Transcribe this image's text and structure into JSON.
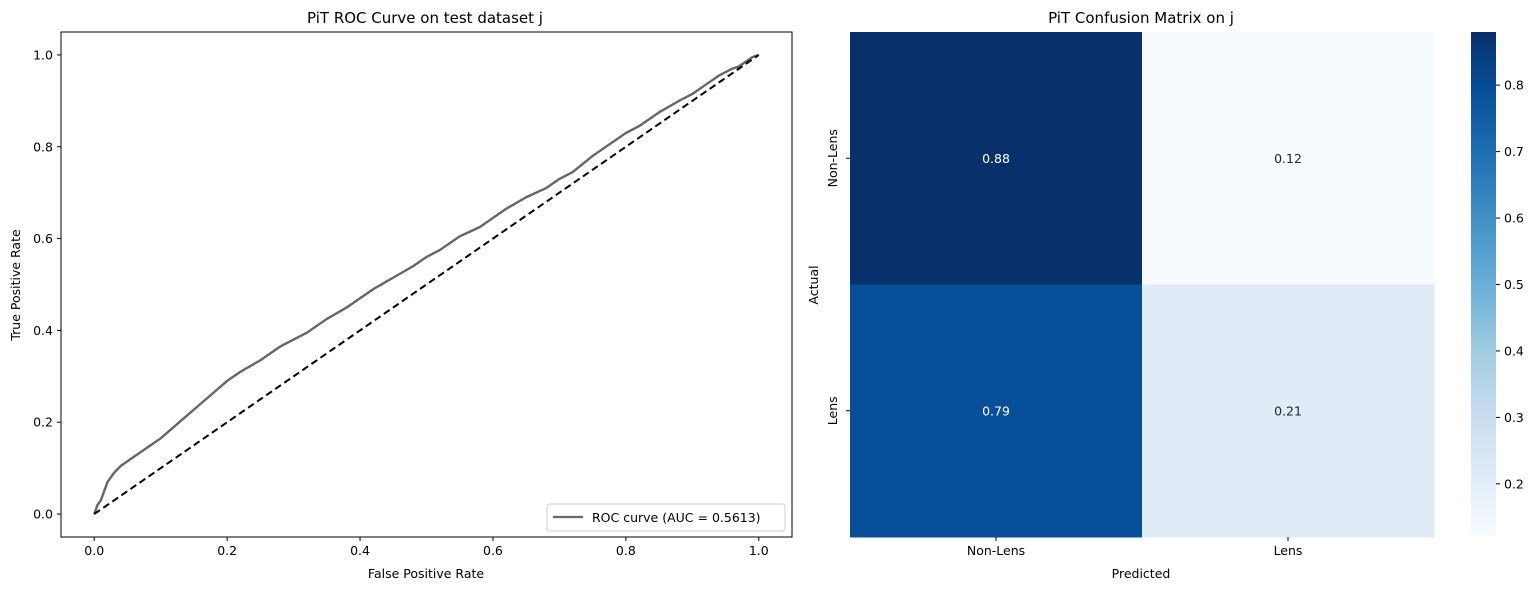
{
  "chart_data": [
    {
      "type": "line",
      "title": "PiT ROC Curve on test dataset j",
      "xlabel": "False Positive Rate",
      "ylabel": "True Positive Rate",
      "xlim": [
        -0.05,
        1.05
      ],
      "ylim": [
        -0.05,
        1.05
      ],
      "xticks": [
        0.0,
        0.2,
        0.4,
        0.6,
        0.8,
        1.0
      ],
      "yticks": [
        0.0,
        0.2,
        0.4,
        0.6,
        0.8,
        1.0
      ],
      "xtick_labels": [
        "0.0",
        "0.2",
        "0.4",
        "0.6",
        "0.8",
        "1.0"
      ],
      "ytick_labels": [
        "0.0",
        "0.2",
        "0.4",
        "0.6",
        "0.8",
        "1.0"
      ],
      "legend_position": "lower-right",
      "series": [
        {
          "name": "ROC curve (AUC = 0.5613)",
          "color": "#666666",
          "x": [
            0.0,
            0.005,
            0.01,
            0.015,
            0.02,
            0.03,
            0.04,
            0.05,
            0.06,
            0.08,
            0.1,
            0.12,
            0.14,
            0.16,
            0.18,
            0.2,
            0.22,
            0.25,
            0.28,
            0.3,
            0.32,
            0.35,
            0.38,
            0.4,
            0.42,
            0.45,
            0.48,
            0.5,
            0.52,
            0.55,
            0.58,
            0.6,
            0.62,
            0.65,
            0.68,
            0.7,
            0.72,
            0.75,
            0.78,
            0.8,
            0.82,
            0.85,
            0.88,
            0.9,
            0.92,
            0.94,
            0.96,
            0.97,
            0.98,
            0.99,
            1.0
          ],
          "y": [
            0.0,
            0.02,
            0.03,
            0.05,
            0.07,
            0.09,
            0.105,
            0.115,
            0.125,
            0.145,
            0.165,
            0.19,
            0.215,
            0.24,
            0.265,
            0.29,
            0.31,
            0.335,
            0.365,
            0.38,
            0.395,
            0.425,
            0.45,
            0.47,
            0.49,
            0.515,
            0.54,
            0.56,
            0.575,
            0.605,
            0.625,
            0.645,
            0.665,
            0.69,
            0.71,
            0.73,
            0.745,
            0.78,
            0.81,
            0.83,
            0.845,
            0.875,
            0.9,
            0.915,
            0.935,
            0.955,
            0.97,
            0.975,
            0.985,
            0.995,
            1.0
          ]
        },
        {
          "name": "",
          "color": "#000000",
          "dashed": true,
          "x": [
            0.0,
            1.0
          ],
          "y": [
            0.0,
            1.0
          ]
        }
      ]
    },
    {
      "type": "heatmap",
      "title": "PiT Confusion Matrix on j",
      "xlabel": "Predicted",
      "ylabel": "Actual",
      "x_categories": [
        "Non-Lens",
        "Lens"
      ],
      "y_categories": [
        "Non-Lens",
        "Lens"
      ],
      "values": [
        [
          0.88,
          0.12
        ],
        [
          0.79,
          0.21
        ]
      ],
      "colormap": "Blues",
      "colorbar_range": [
        0.12,
        0.88
      ],
      "colorbar_ticks": [
        0.2,
        0.3,
        0.4,
        0.5,
        0.6,
        0.7,
        0.8
      ],
      "colorbar_tick_labels": [
        "0.2",
        "0.3",
        "0.4",
        "0.5",
        "0.6",
        "0.7",
        "0.8"
      ],
      "colors": {
        "low": "#f7fbff",
        "high": "#08306b"
      }
    }
  ]
}
